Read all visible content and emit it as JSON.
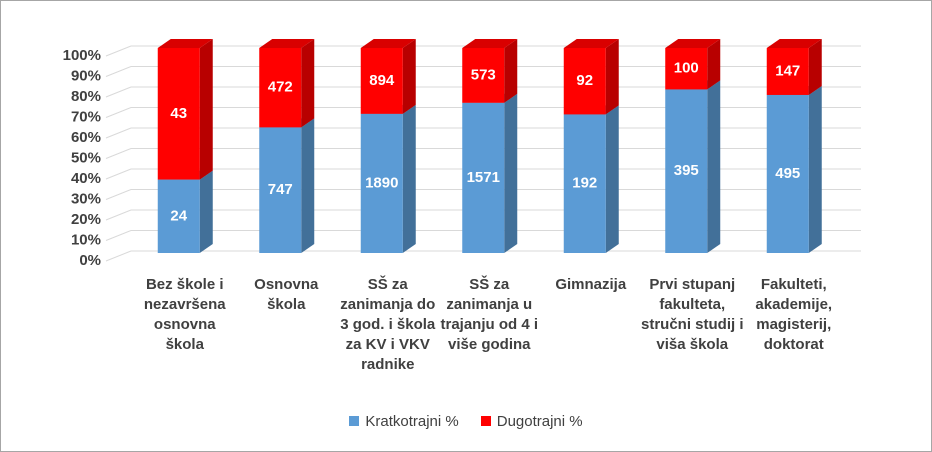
{
  "chart_data": {
    "type": "bar",
    "stacking": "percent",
    "categories": [
      "Bez škole i nezavršena osnovna škola",
      "Osnovna škola",
      "SŠ za zanimanja do 3 god. i škola za KV i VKV radnike",
      "SŠ za zanimanja u trajanju od 4 i više godina",
      "Gimnazija",
      "Prvi stupanj fakulteta, stručni studij i viša škola",
      "Fakulteti, akademije, magisterij, doktorat"
    ],
    "series": [
      {
        "name": "Kratkotrajni %",
        "color": "#5b9bd5",
        "values": [
          24,
          747,
          1890,
          1571,
          192,
          395,
          495
        ]
      },
      {
        "name": "Dugotrajni %",
        "color": "#ff0000",
        "values": [
          43,
          472,
          894,
          573,
          92,
          100,
          147
        ]
      }
    ],
    "ylim": [
      0,
      100
    ],
    "yticks": [
      {
        "value": 0,
        "label": "0%"
      },
      {
        "value": 10,
        "label": "10%"
      },
      {
        "value": 20,
        "label": "20%"
      },
      {
        "value": 30,
        "label": "30%"
      },
      {
        "value": 40,
        "label": "40%"
      },
      {
        "value": 50,
        "label": "50%"
      },
      {
        "value": 60,
        "label": "60%"
      },
      {
        "value": 70,
        "label": "70%"
      },
      {
        "value": 80,
        "label": "80%"
      },
      {
        "value": 90,
        "label": "90%"
      },
      {
        "value": 100,
        "label": "100%"
      }
    ],
    "grid": true,
    "legend": "bottom"
  }
}
